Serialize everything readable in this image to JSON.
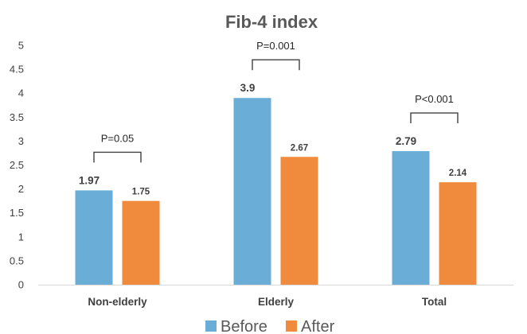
{
  "chart_data": {
    "type": "bar",
    "title": "Fib-4 index",
    "xlabel": "",
    "ylabel": "",
    "categories": [
      "Non-elderly",
      "Elderly",
      "Total"
    ],
    "series": [
      {
        "name": "Before",
        "color": "#6aaed8",
        "values": [
          1.97,
          3.9,
          2.79
        ],
        "labels": [
          "1.97",
          "3.9",
          "2.79"
        ]
      },
      {
        "name": "After",
        "color": "#f08a3c",
        "values": [
          1.75,
          2.67,
          2.14
        ],
        "labels": [
          "1.75",
          "2.67",
          "2.14"
        ]
      }
    ],
    "ylim": [
      0,
      5
    ],
    "yticks": [
      "0",
      "0.5",
      "1",
      "1.5",
      "2",
      "2.5",
      "3",
      "3.5",
      "4",
      "4.5",
      "5"
    ],
    "annotations": [
      "P=0.05",
      "P=0.001",
      "P<0.001"
    ],
    "legend_position": "bottom",
    "grid": false
  }
}
